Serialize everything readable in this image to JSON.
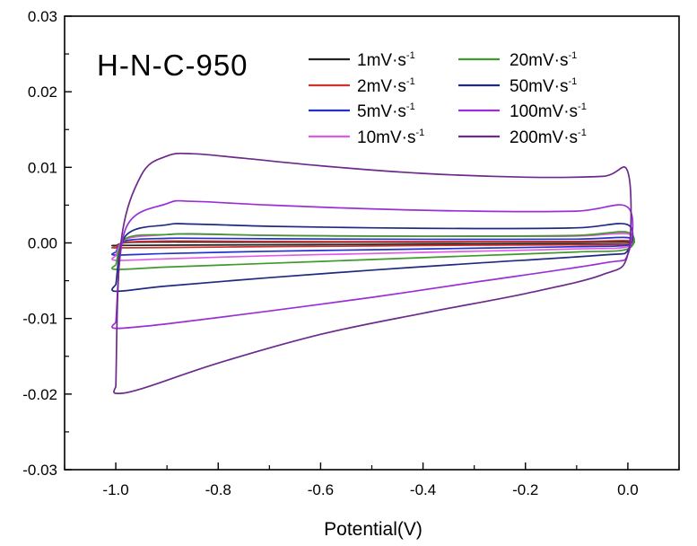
{
  "chart_data": {
    "type": "line",
    "title": "H-N-C-950",
    "xlabel": "Potential(V)",
    "ylabel": "",
    "xlim": [
      -1.1,
      0.1
    ],
    "ylim": [
      -0.03,
      0.03
    ],
    "xticks": [
      -1.0,
      -0.8,
      -0.6,
      -0.4,
      -0.2,
      0.0
    ],
    "xtick_labels": [
      "-1.0",
      "-0.8",
      "-0.6",
      "-0.4",
      "-0.2",
      "0.0"
    ],
    "yticks": [
      -0.03,
      -0.02,
      -0.01,
      0.0,
      0.01,
      0.02,
      0.03
    ],
    "ytick_labels": [
      "-0.03",
      "-0.02",
      "-0.01",
      "0.00",
      "0.01",
      "0.02",
      "0.03"
    ],
    "legend_position": "top-right",
    "series": [
      {
        "name": "1mV·s",
        "sup": "-1",
        "color": "#222222",
        "loop": {
          "x": [
            -1.0,
            -0.98,
            -0.9,
            -0.85,
            -0.7,
            -0.5,
            -0.3,
            -0.1,
            0.0,
            0.0,
            -0.1,
            -0.3,
            -0.5,
            -0.7,
            -0.9,
            -1.0,
            -1.0
          ],
          "y": [
            -0.0004,
            5e-05,
            0.00012,
            0.00012,
            0.0001,
            9e-05,
            9e-05,
            0.00011,
            0.00015,
            -8e-05,
            -0.00013,
            -0.00016,
            -0.0002,
            -0.00025,
            -0.0003,
            -0.00033,
            -0.0004
          ]
        }
      },
      {
        "name": "2mV·s",
        "sup": "-1",
        "color": "#d0332e",
        "loop": {
          "x": [
            -1.0,
            -0.98,
            -0.9,
            -0.85,
            -0.7,
            -0.5,
            -0.3,
            -0.1,
            0.0,
            0.0,
            -0.1,
            -0.3,
            -0.5,
            -0.7,
            -0.9,
            -1.0,
            -1.0
          ],
          "y": [
            -0.0006,
            0.0001,
            0.00025,
            0.00025,
            0.0002,
            0.00018,
            0.00018,
            0.0002,
            0.0003,
            -0.00015,
            -0.00025,
            -0.0003,
            -0.0004,
            -0.0005,
            -0.0006,
            -0.00065,
            -0.0006
          ]
        }
      },
      {
        "name": "5mV·s",
        "sup": "-1",
        "color": "#2233cc",
        "loop": {
          "x": [
            -1.0,
            -0.98,
            -0.9,
            -0.85,
            -0.7,
            -0.5,
            -0.3,
            -0.1,
            0.0,
            0.0,
            -0.1,
            -0.3,
            -0.5,
            -0.7,
            -0.9,
            -1.0,
            -1.0
          ],
          "y": [
            -0.0012,
            0.0003,
            0.0006,
            0.00062,
            0.00055,
            0.0005,
            0.00048,
            0.0005,
            0.0007,
            -0.0003,
            -0.0005,
            -0.0007,
            -0.0009,
            -0.0011,
            -0.0014,
            -0.0016,
            -0.0012
          ]
        }
      },
      {
        "name": "10mV·s",
        "sup": "-1",
        "color": "#e05ae8",
        "loop": {
          "x": [
            -1.0,
            -0.98,
            -0.9,
            -0.85,
            -0.7,
            -0.5,
            -0.3,
            -0.1,
            0.0,
            0.0,
            -0.1,
            -0.3,
            -0.5,
            -0.7,
            -0.9,
            -1.0,
            -1.0
          ],
          "y": [
            -0.0017,
            0.0005,
            0.0011,
            0.00115,
            0.001,
            0.0009,
            0.00088,
            0.0009,
            0.0012,
            -0.0005,
            -0.0008,
            -0.0011,
            -0.0014,
            -0.0017,
            -0.0021,
            -0.0023,
            -0.0017
          ]
        }
      },
      {
        "name": "20mV·s",
        "sup": "-1",
        "color": "#3f9a2c",
        "loop": {
          "x": [
            -1.0,
            -0.98,
            -0.9,
            -0.85,
            -0.7,
            -0.5,
            -0.3,
            -0.1,
            0.0,
            0.0,
            -0.1,
            -0.3,
            -0.5,
            -0.7,
            -0.9,
            -1.0,
            -1.0
          ],
          "y": [
            -0.0029,
            0.0006,
            0.0011,
            0.0012,
            0.001,
            0.0009,
            0.0009,
            0.001,
            0.0014,
            -0.0008,
            -0.0012,
            -0.0017,
            -0.0022,
            -0.0027,
            -0.0032,
            -0.0035,
            -0.0029
          ]
        }
      },
      {
        "name": "50mV·s",
        "sup": "-1",
        "color": "#1f2a80",
        "loop": {
          "x": [
            -1.0,
            -0.98,
            -0.9,
            -0.85,
            -0.7,
            -0.5,
            -0.3,
            -0.1,
            0.0,
            0.0,
            -0.05,
            -0.3,
            -0.5,
            -0.7,
            -0.9,
            -1.0,
            -1.0
          ],
          "y": [
            -0.0055,
            0.001,
            0.0024,
            0.0025,
            0.0022,
            0.002,
            0.0019,
            0.002,
            0.0024,
            -0.001,
            -0.0016,
            -0.0027,
            -0.0036,
            -0.0046,
            -0.0057,
            -0.0064,
            -0.0055
          ]
        }
      },
      {
        "name": "100mV·s",
        "sup": "-1",
        "color": "#9a2fd8",
        "loop": {
          "x": [
            -1.0,
            -0.98,
            -0.9,
            -0.85,
            -0.7,
            -0.5,
            -0.3,
            -0.1,
            0.0,
            0.0,
            -0.05,
            -0.3,
            -0.5,
            -0.7,
            -0.9,
            -1.0,
            -1.0
          ],
          "y": [
            -0.0105,
            0.002,
            0.0052,
            0.0055,
            0.005,
            0.0045,
            0.0042,
            0.0042,
            0.0047,
            -0.0015,
            -0.0027,
            -0.0052,
            -0.0072,
            -0.009,
            -0.0107,
            -0.0113,
            -0.0105
          ]
        }
      },
      {
        "name": "200mV·s",
        "sup": "-1",
        "color": "#6d2a8a",
        "loop": {
          "x": [
            -1.0,
            -0.99,
            -0.95,
            -0.9,
            -0.85,
            -0.75,
            -0.6,
            -0.4,
            -0.2,
            -0.05,
            0.0,
            0.0,
            -0.05,
            -0.2,
            -0.4,
            -0.6,
            -0.8,
            -0.95,
            -1.0,
            -1.0
          ],
          "y": [
            -0.019,
            0.0,
            0.009,
            0.0115,
            0.0118,
            0.0112,
            0.0102,
            0.0092,
            0.0087,
            0.0088,
            0.0094,
            -0.0015,
            -0.0042,
            -0.0067,
            -0.0093,
            -0.0121,
            -0.0159,
            -0.0193,
            -0.0199,
            -0.019
          ]
        }
      }
    ]
  }
}
